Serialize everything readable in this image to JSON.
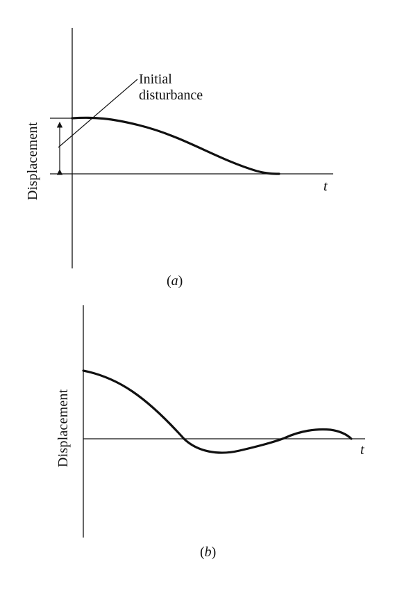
{
  "figures": [
    {
      "caption": {
        "open": "(",
        "letter": "a",
        "close": ")"
      },
      "ylabel": "Displacement",
      "xlabel": "t",
      "annotation": {
        "line1": "Initial",
        "line2": "disturbance"
      }
    },
    {
      "caption": {
        "open": "(",
        "letter": "b",
        "close": ")"
      },
      "ylabel": "Displacement",
      "xlabel": "t"
    }
  ]
}
